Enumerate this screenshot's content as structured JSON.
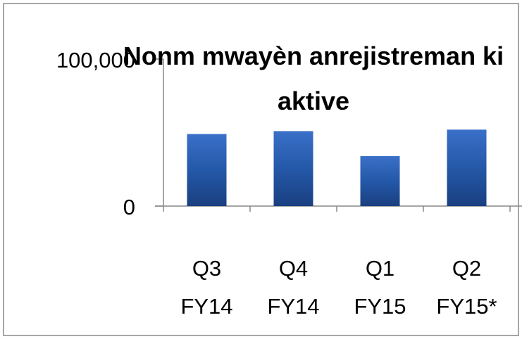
{
  "chart_data": {
    "type": "bar",
    "title": "Nonm mwayèn anrejistreman ki aktive",
    "categories": [
      "Q3 FY14",
      "Q4 FY14",
      "Q1 FY15",
      "Q2 FY15*"
    ],
    "values": [
      49000,
      51000,
      34000,
      52000
    ],
    "color": "#2a5caa",
    "ylim": [
      0,
      100000
    ],
    "yticks": [
      0,
      {
        "value": 100000,
        "label": "100,000"
      }
    ],
    "grid": false
  }
}
